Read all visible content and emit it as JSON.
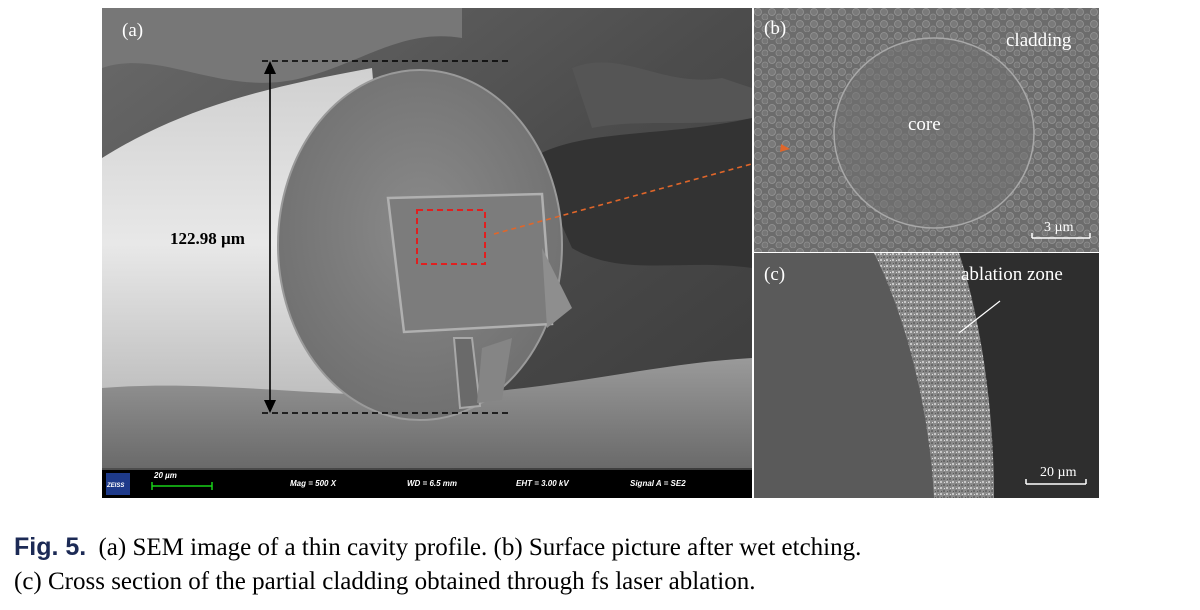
{
  "figure": {
    "panels": {
      "a": {
        "label": "(a)",
        "measurement": "122.98 µm",
        "infobar": {
          "logo": "ZEISS",
          "scale": "20 µm",
          "mag": "Mag =   500 X",
          "wd": "WD =  6.5 mm",
          "eht": "EHT =   3.00 kV",
          "signal": "Signal A = SE2"
        }
      },
      "b": {
        "label": "(b)",
        "cladding": "cladding",
        "core": "core",
        "scale": "3 µm"
      },
      "c": {
        "label": "(c)",
        "ablation": "ablation zone",
        "scale": "20 µm"
      }
    },
    "caption": {
      "label": "Fig. 5.",
      "line1": "(a) SEM image of a thin cavity profile.  (b) Surface picture after wet etching.",
      "line2": "(c) Cross section of the partial cladding obtained through fs laser ablation."
    }
  }
}
